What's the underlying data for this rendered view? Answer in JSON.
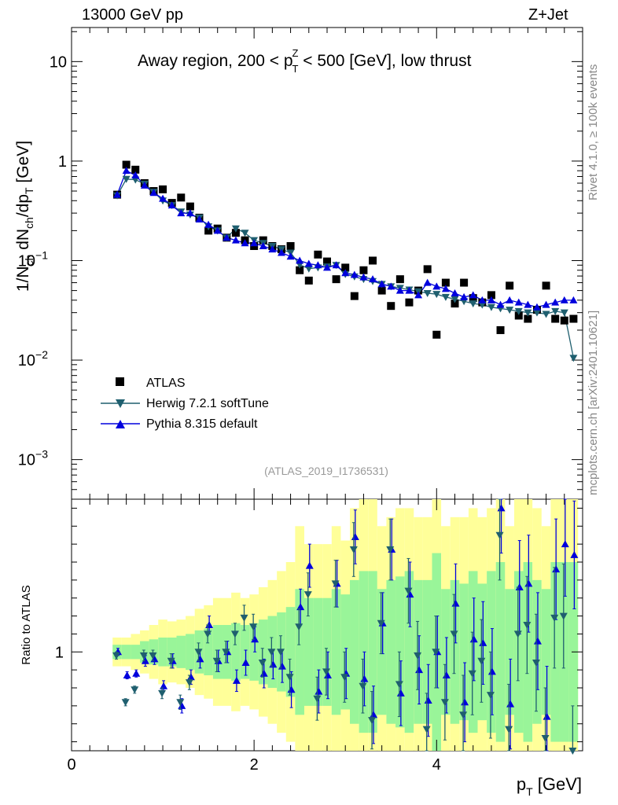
{
  "header": {
    "left": "13000 GeV pp",
    "right": "Z+Jet"
  },
  "side_labels": {
    "rivet": "Rivet 4.1.0, ≥ 100k events",
    "mcplots": "mcplots.cern.ch [arXiv:2401.10621]"
  },
  "colors": {
    "atlas": "#000000",
    "herwig": "#1f5f6f",
    "pythia": "#0000dd",
    "band_inner": "#99f599",
    "band_outer": "#ffff99"
  },
  "chart_data": [
    {
      "type": "scatter",
      "panel": "main",
      "title": "Away region, 200 < p_T^Z < 500 [GeV], low thrust",
      "title_parts": {
        "pre": "Away region, 200 < p",
        "sup": "Z",
        "sub": "T",
        "post": " < 500 [GeV], low thrust"
      },
      "xlabel": "p_T [GeV]",
      "ylabel": "1/N_ch dN_ch/dp_T [GeV]",
      "yscale": "log",
      "xlim": [
        0,
        5.6
      ],
      "ylim": [
        0.0004,
        22
      ],
      "yticks": [
        {
          "value": 10,
          "label": "10"
        },
        {
          "value": 1,
          "label": "1"
        },
        {
          "value": 0.1,
          "label": "10",
          "exp": "−1"
        },
        {
          "value": 0.01,
          "label": "10",
          "exp": "−2"
        },
        {
          "value": 0.001,
          "label": "10",
          "exp": "−3"
        }
      ],
      "watermark": "(ATLAS_2019_I1736531)",
      "legend_position": "lower-left",
      "legend": [
        "ATLAS",
        "Herwig 7.2.1 softTune",
        "Pythia 8.315 default"
      ],
      "x": [
        0.5,
        0.6,
        0.7,
        0.8,
        0.9,
        1.0,
        1.1,
        1.2,
        1.3,
        1.4,
        1.5,
        1.6,
        1.7,
        1.8,
        1.9,
        2.0,
        2.1,
        2.2,
        2.3,
        2.4,
        2.5,
        2.6,
        2.7,
        2.8,
        2.9,
        3.0,
        3.1,
        3.2,
        3.3,
        3.4,
        3.5,
        3.6,
        3.7,
        3.8,
        3.9,
        4.0,
        4.1,
        4.2,
        4.3,
        4.4,
        4.5,
        4.6,
        4.7,
        4.8,
        4.9,
        5.0,
        5.1,
        5.2,
        5.3,
        5.4,
        5.5
      ],
      "series": [
        {
          "name": "ATLAS",
          "marker": "square",
          "values": [
            0.46,
            0.92,
            0.82,
            0.6,
            0.5,
            0.52,
            0.38,
            0.43,
            0.35,
            0.27,
            0.2,
            0.21,
            0.17,
            0.19,
            0.16,
            0.14,
            0.16,
            0.14,
            0.13,
            0.14,
            0.08,
            0.063,
            0.115,
            0.098,
            0.065,
            0.085,
            0.044,
            0.08,
            0.1,
            0.05,
            0.035,
            0.065,
            0.038,
            0.05,
            0.082,
            0.018,
            0.06,
            0.037,
            0.06,
            0.042,
            0.038,
            0.045,
            0.02,
            0.056,
            0.028,
            0.026,
            0.032,
            0.056,
            0.026,
            0.025,
            0.026
          ]
        },
        {
          "name": "Herwig 7.2.1 softTune",
          "marker": "triangle-down",
          "values": [
            0.45,
            0.66,
            0.65,
            0.59,
            0.49,
            0.4,
            0.36,
            0.31,
            0.29,
            0.27,
            0.22,
            0.2,
            0.17,
            0.21,
            0.19,
            0.16,
            0.15,
            0.14,
            0.13,
            0.12,
            0.091,
            0.083,
            0.085,
            0.087,
            0.09,
            0.073,
            0.069,
            0.065,
            0.062,
            0.058,
            0.055,
            0.053,
            0.051,
            0.049,
            0.047,
            0.046,
            0.043,
            0.041,
            0.039,
            0.037,
            0.036,
            0.034,
            0.033,
            0.032,
            0.031,
            0.03,
            0.03,
            0.029,
            0.031,
            0.03,
            0.0105
          ]
        },
        {
          "name": "Pythia 8.315 default",
          "marker": "triangle-up",
          "values": [
            0.46,
            0.8,
            0.72,
            0.57,
            0.48,
            0.42,
            0.36,
            0.3,
            0.3,
            0.26,
            0.23,
            0.2,
            0.17,
            0.16,
            0.15,
            0.15,
            0.14,
            0.13,
            0.12,
            0.11,
            0.1,
            0.093,
            0.09,
            0.085,
            0.09,
            0.075,
            0.072,
            0.068,
            0.065,
            0.058,
            0.055,
            0.05,
            0.05,
            0.045,
            0.06,
            0.055,
            0.052,
            0.047,
            0.043,
            0.045,
            0.04,
            0.04,
            0.036,
            0.04,
            0.038,
            0.036,
            0.034,
            0.036,
            0.038,
            0.04,
            0.04
          ]
        }
      ]
    },
    {
      "type": "scatter",
      "panel": "ratio",
      "xlabel": "p_T [GeV]",
      "ylabel": "Ratio to ATLAS",
      "xlim": [
        0,
        5.6
      ],
      "ylim": [
        0.45,
        1.85
      ],
      "yticks": [
        1
      ],
      "xticks": [
        0,
        2,
        4
      ],
      "uncertainty_bands": {
        "inner_half_width": [
          0.04,
          0.04,
          0.04,
          0.06,
          0.07,
          0.08,
          0.08,
          0.09,
          0.1,
          0.12,
          0.13,
          0.15,
          0.15,
          0.16,
          0.15,
          0.16,
          0.18,
          0.2,
          0.22,
          0.25,
          0.35,
          0.3,
          0.3,
          0.3,
          0.35,
          0.32,
          0.4,
          0.45,
          0.45,
          0.35,
          0.4,
          0.42,
          0.45,
          0.4,
          0.4,
          0.55,
          0.35,
          0.4,
          0.38,
          0.45,
          0.38,
          0.45,
          0.5,
          0.35,
          0.45,
          0.5,
          0.4,
          0.35,
          0.5,
          0.5,
          0.5
        ],
        "outer_half_width": [
          0.08,
          0.08,
          0.1,
          0.12,
          0.15,
          0.18,
          0.17,
          0.18,
          0.2,
          0.24,
          0.26,
          0.3,
          0.3,
          0.33,
          0.3,
          0.32,
          0.36,
          0.4,
          0.45,
          0.5,
          0.7,
          0.6,
          0.6,
          0.6,
          0.7,
          0.62,
          0.8,
          0.85,
          0.9,
          0.7,
          0.75,
          0.8,
          0.8,
          0.75,
          0.75,
          1.0,
          0.7,
          0.75,
          0.75,
          0.8,
          0.75,
          0.8,
          0.9,
          0.7,
          0.85,
          0.9,
          0.8,
          0.7,
          0.9,
          0.9,
          0.9
        ]
      },
      "series": [
        {
          "name": "Herwig 7.2.1 softTune",
          "values": [
            0.98,
            0.72,
            0.79,
            0.98,
            0.98,
            0.77,
            0.95,
            0.72,
            0.83,
            1.0,
            1.1,
            0.95,
            1.0,
            1.1,
            1.19,
            1.14,
            0.94,
            1.0,
            1.0,
            0.86,
            1.14,
            1.32,
            0.74,
            0.89,
            1.38,
            0.86,
            1.57,
            0.81,
            0.62,
            1.16,
            1.57,
            0.82,
            1.34,
            0.98,
            0.57,
            1.0,
            0.72,
            1.1,
            0.65,
            0.88,
            0.95,
            0.76,
            1.65,
            0.57,
            1.1,
            1.15,
            0.94,
            0.52,
            1.19,
            1.2,
            0.4
          ],
          "errors": [
            0.02,
            0.02,
            0.02,
            0.03,
            0.03,
            0.03,
            0.04,
            0.04,
            0.04,
            0.05,
            0.05,
            0.06,
            0.06,
            0.06,
            0.07,
            0.07,
            0.08,
            0.08,
            0.09,
            0.1,
            0.1,
            0.12,
            0.12,
            0.13,
            0.13,
            0.14,
            0.15,
            0.15,
            0.16,
            0.17,
            0.17,
            0.18,
            0.18,
            0.19,
            0.2,
            0.2,
            0.21,
            0.22,
            0.22,
            0.23,
            0.23,
            0.24,
            0.25,
            0.25,
            0.26,
            0.27,
            0.27,
            0.28,
            0.28,
            0.29,
            0.3
          ]
        },
        {
          "name": "Pythia 8.315 default",
          "values": [
            1.0,
            0.87,
            0.88,
            0.95,
            0.96,
            0.81,
            0.95,
            0.7,
            0.86,
            0.96,
            1.15,
            0.95,
            1.0,
            0.84,
            0.94,
            1.07,
            0.88,
            0.93,
            0.92,
            0.79,
            1.25,
            1.48,
            0.78,
            0.87,
            1.38,
            0.88,
            1.64,
            0.85,
            0.65,
            1.16,
            1.57,
            0.77,
            1.32,
            0.9,
            0.73,
            1.0,
            0.87,
            1.27,
            0.72,
            1.07,
            1.05,
            0.89,
            1.8,
            0.71,
            1.36,
            1.38,
            1.06,
            0.64,
            1.46,
            1.6,
            1.54
          ],
          "errors": [
            0.02,
            0.02,
            0.02,
            0.03,
            0.03,
            0.03,
            0.04,
            0.04,
            0.04,
            0.05,
            0.05,
            0.06,
            0.06,
            0.06,
            0.07,
            0.07,
            0.08,
            0.08,
            0.09,
            0.1,
            0.1,
            0.12,
            0.12,
            0.13,
            0.13,
            0.14,
            0.15,
            0.15,
            0.16,
            0.17,
            0.17,
            0.18,
            0.18,
            0.19,
            0.2,
            0.2,
            0.21,
            0.22,
            0.22,
            0.23,
            0.23,
            0.24,
            0.25,
            0.25,
            0.26,
            0.27,
            0.27,
            0.28,
            0.28,
            0.29,
            0.3
          ]
        }
      ]
    }
  ]
}
